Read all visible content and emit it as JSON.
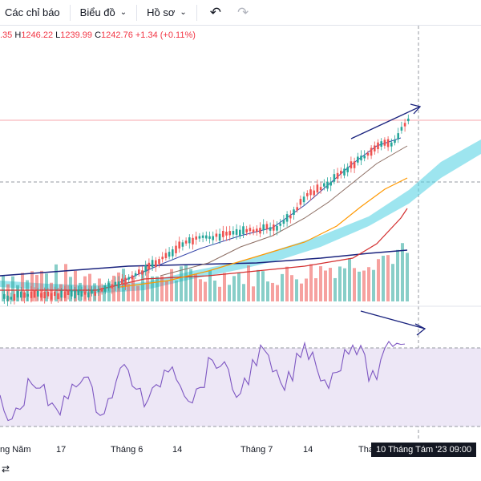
{
  "toolbar": {
    "indicators_label": "Các chỉ báo",
    "chart_label": "Biểu đồ",
    "profile_label": "Hồ sơ",
    "undo_icon": "undo-icon",
    "redo_icon": "redo-icon"
  },
  "ohlc": {
    "open_partial": ".35",
    "high_label": "H",
    "high": "1246.22",
    "low_label": "L",
    "low": "1239.99",
    "close_label": "C",
    "close": "1242.76",
    "change": "+1.34 (+0.11%)"
  },
  "xaxis": {
    "labels": [
      "ng Năm",
      "17",
      "Tháng 6",
      "14",
      "Tháng 7",
      "14",
      "Tha"
    ],
    "crosshair": "10 Tháng Tám '23   09:00"
  },
  "colors": {
    "up": "#26a69a",
    "down": "#ef5350",
    "rsi_line": "#7e57c2",
    "rsi_band": "#ede7f6",
    "cloud": "#4dd0e1",
    "divergence": "#1a237e"
  },
  "bottom": {
    "icon": "scale-icon"
  }
}
